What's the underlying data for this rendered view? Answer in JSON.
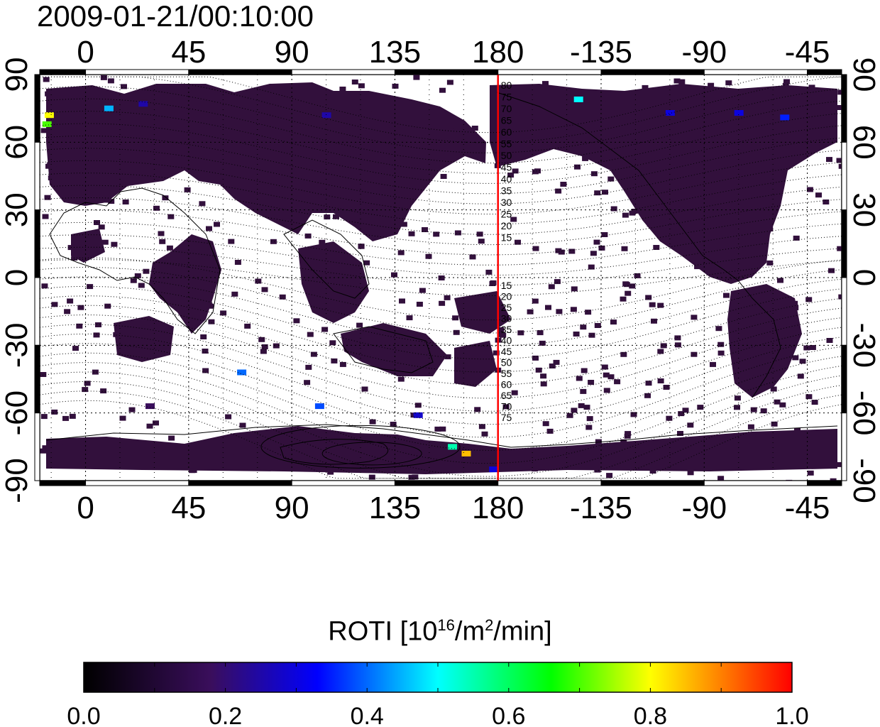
{
  "title": "2009-01-21/00:10:00",
  "map": {
    "type": "map",
    "projection": "equirectangular",
    "longitude_range": [
      -20,
      330
    ],
    "latitude_range": [
      -90,
      90
    ],
    "top_axis_labels": [
      "0",
      "45",
      "90",
      "135",
      "180",
      "-135",
      "-90",
      "-45"
    ],
    "bottom_axis_labels": [
      "0",
      "45",
      "90",
      "135",
      "180",
      "-135",
      "-90",
      "-45"
    ],
    "left_axis_labels": [
      "90",
      "60",
      "30",
      "0",
      "-30",
      "-60",
      "-90"
    ],
    "right_axis_labels": [
      "90",
      "60",
      "30",
      "0",
      "-30",
      "-60",
      "-90"
    ],
    "meridian_marker_longitude": 180,
    "meridian_marker_color": "#ff0000",
    "contour_labels_north": [
      "80",
      "75",
      "70",
      "65",
      "60",
      "55",
      "50",
      "45",
      "40",
      "35",
      "30",
      "25",
      "20",
      "15"
    ],
    "contour_labels_south": [
      "15",
      "20",
      "25",
      "30",
      "35",
      "40",
      "45",
      "50",
      "55",
      "60",
      "65",
      "70",
      "75"
    ],
    "data_color_low": "#32103c",
    "hotspots": [
      {
        "lon": -16,
        "lat": 72,
        "value": 0.8
      },
      {
        "lon": -17,
        "lat": 68,
        "value": 0.7
      },
      {
        "lon": 10,
        "lat": 75,
        "value": 0.45
      },
      {
        "lon": 25,
        "lat": 77,
        "value": 0.25
      },
      {
        "lon": 105,
        "lat": 72,
        "value": 0.25
      },
      {
        "lon": 68,
        "lat": -42,
        "value": 0.4
      },
      {
        "lon": 102,
        "lat": -57,
        "value": 0.38
      },
      {
        "lon": 145,
        "lat": -61,
        "value": 0.28
      },
      {
        "lon": 28,
        "lat": -57,
        "value": 0.18
      },
      {
        "lon": 160,
        "lat": -75,
        "value": 0.55
      },
      {
        "lon": 166,
        "lat": -78,
        "value": 0.85
      },
      {
        "lon": 178,
        "lat": -85,
        "value": 0.3
      },
      {
        "lon": -145,
        "lat": 79,
        "value": 0.5
      },
      {
        "lon": -105,
        "lat": 73,
        "value": 0.3
      },
      {
        "lon": -75,
        "lat": 73,
        "value": 0.3
      },
      {
        "lon": -55,
        "lat": 71,
        "value": 0.35
      },
      {
        "lon": -26,
        "lat": 72,
        "value": 0.5
      }
    ]
  },
  "colorbar": {
    "title": "ROTI  [10",
    "title_exp1": "16",
    "title_mid": "/m",
    "title_exp2": "2",
    "title_end": "/min]",
    "min": 0.0,
    "max": 1.0,
    "tick_labels": [
      "0.0",
      "0.2",
      "0.4",
      "0.6",
      "0.8",
      "1.0"
    ],
    "stops": [
      "#000000",
      "#3a0e5c",
      "#0000ff",
      "#00ffff",
      "#00ff00",
      "#ffff00",
      "#ff0000"
    ]
  }
}
